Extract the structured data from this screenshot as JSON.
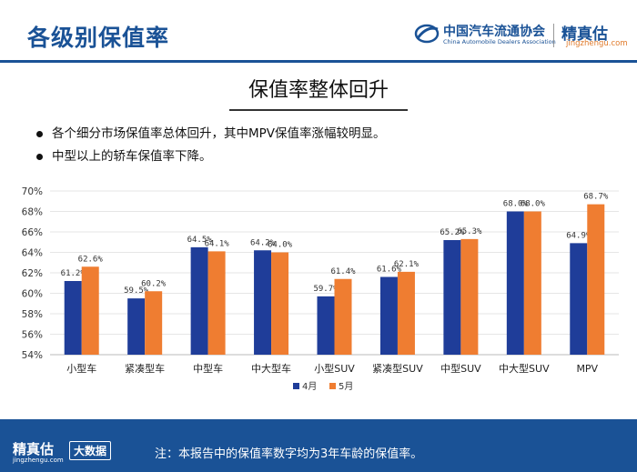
{
  "header": {
    "title": "各级别保值率",
    "association_name_cn": "中国汽车流通协会",
    "association_name_en": "China Automobile Dealers Association",
    "brand_name": "精真估",
    "brand_site": "jingzhengu.com"
  },
  "headline": "保值率整体回升",
  "bullets": [
    "各个细分市场保值率总体回升，其中MPV保值率涨幅较明显。",
    "中型以上的轿车保值率下降。"
  ],
  "chart_data": {
    "type": "bar",
    "categories": [
      "小型车",
      "紧凑型车",
      "中型车",
      "中大型车",
      "小型SUV",
      "紧凑型SUV",
      "中型SUV",
      "中大型SUV",
      "MPV"
    ],
    "series": [
      {
        "name": "4月",
        "values": [
          61.2,
          59.5,
          64.5,
          64.2,
          59.7,
          61.6,
          65.2,
          68.0,
          64.9
        ],
        "labels": [
          "61.2%",
          "59.5%",
          "64.5%",
          "64.2%",
          "59.7%",
          "61.6%",
          "65.2%",
          "68.0%",
          "64.9%"
        ],
        "color": "#1f3d99"
      },
      {
        "name": "5月",
        "values": [
          62.6,
          60.2,
          64.1,
          64.0,
          61.4,
          62.1,
          65.3,
          68.0,
          68.7
        ],
        "labels": [
          "62.6%",
          "60.2%",
          "64.1%",
          "64.0%",
          "61.4%",
          "62.1%",
          "65.3%",
          "68.0%",
          "68.7%"
        ],
        "color": "#ef7d31"
      }
    ],
    "y_ticks": [
      "54%",
      "56%",
      "58%",
      "60%",
      "62%",
      "64%",
      "66%",
      "68%",
      "70%"
    ],
    "ylim": [
      54,
      70
    ],
    "grid": true,
    "legend_position": "bottom",
    "title": "",
    "xlabel": "",
    "ylabel": ""
  },
  "footer": {
    "brand_name": "精真估",
    "brand_site": "jingzhengu.com",
    "tag": "大数据",
    "note": "注：本报告中的保值率数字均为3年车龄的保值率。"
  }
}
